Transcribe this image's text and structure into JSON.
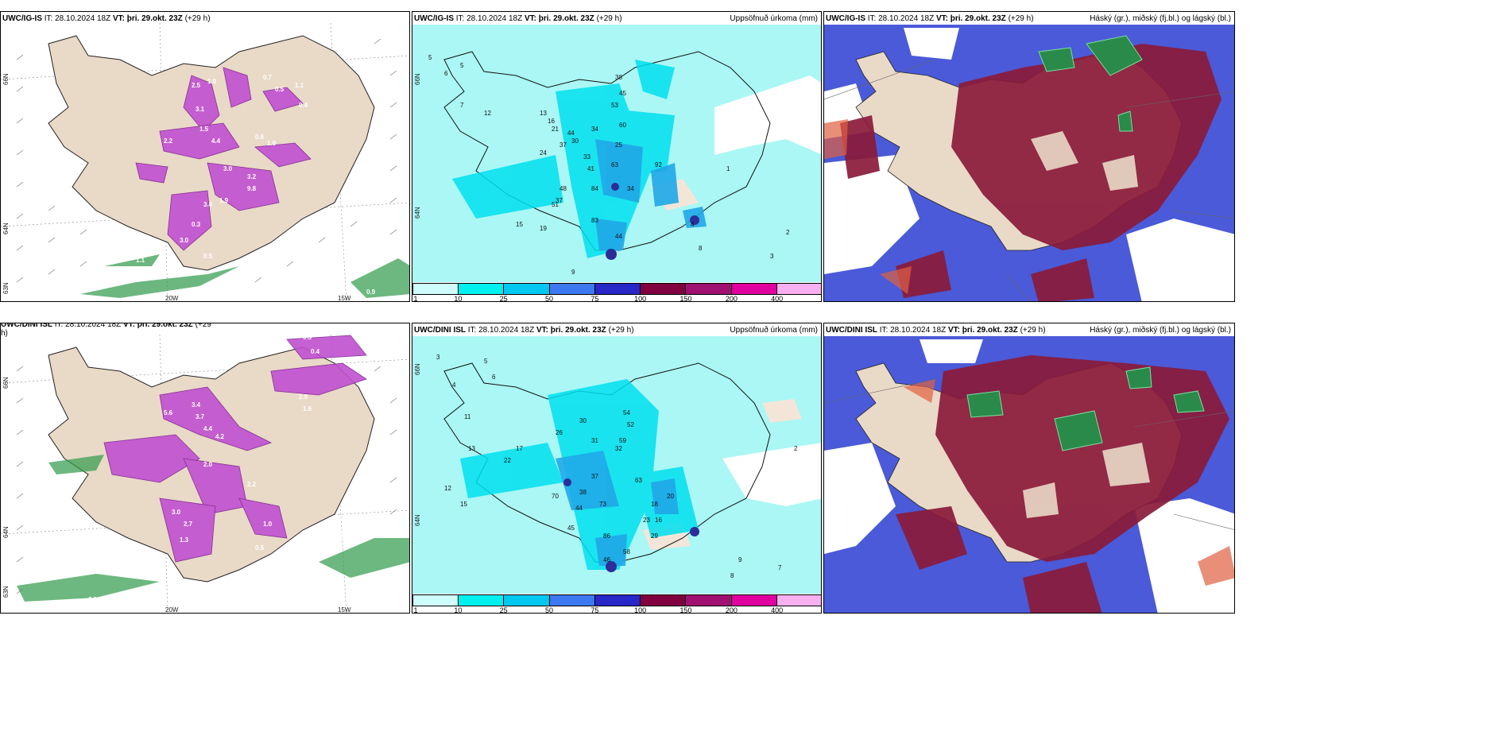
{
  "panels": {
    "top_left": {
      "model": "UWC/IG-IS",
      "it_label": "IT:",
      "it_time": "28.10.2024 18Z",
      "vt_label": "VT:",
      "vt_time": "þri. 29.okt. 23Z",
      "lead": "(+29 h)"
    },
    "top_mid": {
      "model": "UWC/IG-IS",
      "it_label": "IT:",
      "it_time": "28.10.2024 18Z",
      "vt_label": "VT:",
      "vt_time": "þri. 29.okt. 23Z",
      "lead": "(+29 h)",
      "right_title": "Uppsöfnuð úrkoma (mm)"
    },
    "top_right": {
      "model": "UWC/IG-IS",
      "it_label": "IT:",
      "it_time": "28.10.2024 18Z",
      "vt_label": "VT:",
      "vt_time": "þri. 29.okt. 23Z",
      "lead": "(+29 h)",
      "right_title": "Háský (gr.), miðský (fj.bl.) og lágský (bl.)"
    },
    "bot_left": {
      "model": "UWC/DINI ISL",
      "it_label": "IT:",
      "it_time": "28.10.2024 18Z",
      "vt_label": "VT:",
      "vt_time": "þri. 29.okt. 23Z",
      "lead": "(+29",
      "lead2": "h)"
    },
    "bot_mid": {
      "model": "UWC/DINI ISL",
      "it_label": "IT:",
      "it_time": "28.10.2024 18Z",
      "vt_label": "VT:",
      "vt_time": "þri. 29.okt. 23Z",
      "lead": "(+29 h)",
      "right_title": "Uppsöfnuð úrkoma (mm)"
    },
    "bot_right": {
      "model": "UWC/DINI ISL",
      "it_label": "IT:",
      "it_time": "28.10.2024 18Z",
      "vt_label": "VT:",
      "vt_time": "þri. 29.okt. 23Z",
      "lead": "(+29 h)",
      "right_title": "Háský (gr.), miðský (fj.bl.) og lágský (bl.)"
    }
  },
  "axes": {
    "lat66": "66N",
    "lat64": "64N",
    "lat63": "63N",
    "lon20": "20W",
    "lon15": "15W"
  },
  "colorbar": {
    "ticks": [
      "1",
      "10",
      "25",
      "50",
      "75",
      "100",
      "150",
      "200",
      "400"
    ],
    "colors": [
      "#cffcfc",
      "#00f0f0",
      "#00c8f0",
      "#3c78f0",
      "#2828c8",
      "#800040",
      "#a01070",
      "#e000a0",
      "#f8b0f0"
    ]
  },
  "colors": {
    "land": "#e9d9c7",
    "rain_light": "#aaf7f5",
    "precip_mag": "#c050d0",
    "cloud_high": "#2a8a4a",
    "cloud_mid": "#8a1a3a",
    "cloud_low": "#4a5ad8"
  },
  "labels": {
    "tl": [
      "2.5",
      "1.0",
      "0.7",
      "0.5",
      "1.1",
      "0.4",
      "3.1",
      "1.5",
      "4.4",
      "2.2",
      "0.6",
      "1.0",
      "3.0",
      "3.2",
      "9.8",
      "1.9",
      "3.4",
      "0.3",
      "3.0",
      "0.5",
      "1.1",
      "0.8",
      "0.6",
      "0.9"
    ],
    "bl": [
      "0.6",
      "0.3",
      "0.4",
      "5.6",
      "3.4",
      "3.7",
      "4.4",
      "4.2",
      "2.9",
      "1.6",
      "2.0",
      "2.2",
      "3.0",
      "2.7",
      "1.3",
      "1.0",
      "0.5",
      "0.6",
      "0.8",
      "1.1",
      "0.9",
      "0.7"
    ],
    "tm": [
      "5",
      "6",
      "7",
      "12",
      "13",
      "16",
      "24",
      "37",
      "21",
      "44",
      "34",
      "38",
      "45",
      "53",
      "60",
      "25",
      "30",
      "33",
      "41",
      "63",
      "92",
      "34",
      "48",
      "51",
      "84",
      "15",
      "19",
      "83",
      "44",
      "37",
      "8",
      "9",
      "4",
      "5",
      "2",
      "3",
      "1"
    ],
    "bm": [
      "3",
      "4",
      "5",
      "6",
      "11",
      "13",
      "17",
      "22",
      "26",
      "30",
      "31",
      "32",
      "37",
      "38",
      "44",
      "45",
      "54",
      "52",
      "59",
      "63",
      "70",
      "73",
      "86",
      "12",
      "15",
      "18",
      "16",
      "20",
      "23",
      "29",
      "46",
      "58",
      "2",
      "8",
      "9",
      "7"
    ]
  }
}
